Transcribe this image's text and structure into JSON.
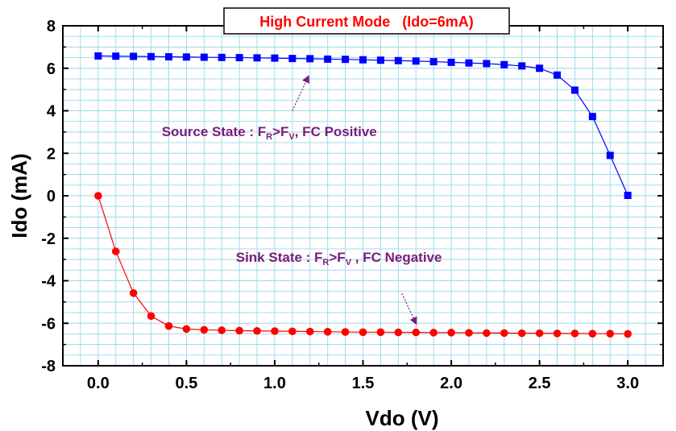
{
  "chart_data": {
    "type": "line",
    "title": "High Current Mode   (Ido=6mA)",
    "xlabel": "Vdo (V)",
    "ylabel": "Ido (mA)",
    "xlim": [
      -0.2,
      3.2
    ],
    "ylim": [
      -8,
      8
    ],
    "x_ticks": [
      0.0,
      0.5,
      1.0,
      1.5,
      2.0,
      2.5,
      3.0
    ],
    "x_tick_labels": [
      "0.0",
      "0.5",
      "1.0",
      "1.5",
      "2.0",
      "2.5",
      "3.0"
    ],
    "y_ticks": [
      -8,
      -6,
      -4,
      -2,
      0,
      2,
      4,
      6,
      8
    ],
    "y_tick_labels": [
      "-8",
      "-6",
      "-4",
      "-2",
      "0",
      "2",
      "4",
      "6",
      "8"
    ],
    "grid": true,
    "series": [
      {
        "color": "#0000ff",
        "marker": "square",
        "x": [
          0.0,
          0.1,
          0.2,
          0.3,
          0.4,
          0.5,
          0.6,
          0.7,
          0.8,
          0.9,
          1.0,
          1.1,
          1.2,
          1.3,
          1.4,
          1.5,
          1.6,
          1.7,
          1.8,
          1.9,
          2.0,
          2.1,
          2.2,
          2.3,
          2.4,
          2.5,
          2.6,
          2.7,
          2.8,
          2.9,
          3.0
        ],
        "values": [
          6.58,
          6.57,
          6.56,
          6.55,
          6.54,
          6.53,
          6.52,
          6.51,
          6.5,
          6.49,
          6.48,
          6.46,
          6.45,
          6.43,
          6.42,
          6.4,
          6.38,
          6.36,
          6.34,
          6.31,
          6.28,
          6.25,
          6.22,
          6.17,
          6.11,
          6.0,
          5.68,
          4.97,
          3.73,
          1.9,
          0.02
        ]
      },
      {
        "color": "#ff0000",
        "marker": "circle",
        "x": [
          0.0,
          0.1,
          0.2,
          0.3,
          0.4,
          0.5,
          0.6,
          0.7,
          0.8,
          0.9,
          1.0,
          1.1,
          1.2,
          1.3,
          1.4,
          1.5,
          1.6,
          1.7,
          1.8,
          1.9,
          2.0,
          2.1,
          2.2,
          2.3,
          2.4,
          2.5,
          2.6,
          2.7,
          2.8,
          2.9,
          3.0
        ],
        "values": [
          0.0,
          -2.62,
          -4.58,
          -5.66,
          -6.13,
          -6.27,
          -6.31,
          -6.33,
          -6.35,
          -6.36,
          -6.37,
          -6.38,
          -6.39,
          -6.4,
          -6.41,
          -6.42,
          -6.42,
          -6.43,
          -6.43,
          -6.44,
          -6.44,
          -6.45,
          -6.46,
          -6.46,
          -6.47,
          -6.47,
          -6.48,
          -6.48,
          -6.49,
          -6.49,
          -6.5
        ]
      }
    ],
    "annotations": [
      {
        "parts": [
          "Source State : F",
          "R",
          ">F",
          "V",
          ", FC Positive"
        ],
        "text_x": 0.36,
        "text_y": 2.8,
        "arrow_from": [
          1.1,
          4.0
        ],
        "arrow_to": [
          1.19,
          5.6
        ]
      },
      {
        "parts": [
          "Sink State : F",
          "R",
          ">F",
          "V",
          " , FC Negative"
        ],
        "text_x": 0.78,
        "text_y": -3.1,
        "arrow_from": [
          1.72,
          -4.6
        ],
        "arrow_to": [
          1.8,
          -6.0
        ]
      }
    ]
  }
}
